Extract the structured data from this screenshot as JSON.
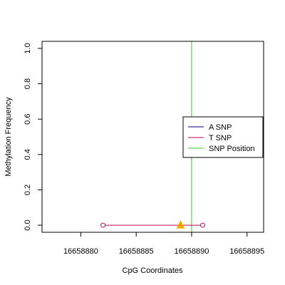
{
  "chart_data": {
    "type": "line",
    "xlabel": "CpG Coordinates",
    "ylabel": "Methylation Frequency",
    "xlim": [
      16658876.5,
      16658896.5
    ],
    "ylim": [
      -0.04,
      1.04
    ],
    "x_ticks": [
      16658880,
      16658885,
      16658890,
      16658895
    ],
    "x_tick_labels": [
      "16658880",
      "16658885",
      "16658890",
      "16658895"
    ],
    "y_ticks": [
      0.0,
      0.2,
      0.4,
      0.6,
      0.8,
      1.0
    ],
    "y_tick_labels": [
      "0.0",
      "0.2",
      "0.4",
      "0.6",
      "0.8",
      "1.0"
    ],
    "series": [
      {
        "name": "T SNP",
        "color": "#c0005a",
        "marker": "open-circle",
        "x": [
          16658882,
          16658891
        ],
        "y": [
          0.0,
          0.0
        ]
      }
    ],
    "snp_position": {
      "x": 16658890,
      "color": "#33cc33"
    },
    "snp_marker": {
      "x": 16658889,
      "y": 0.0,
      "color": "#ffa500",
      "shape": "triangle"
    },
    "legend": {
      "placement": "right",
      "entries": [
        {
          "label": "A SNP",
          "color": "#000080"
        },
        {
          "label": "T SNP",
          "color": "#c0005a"
        },
        {
          "label": "SNP Position",
          "color": "#33cc33"
        }
      ]
    },
    "grid": false
  }
}
